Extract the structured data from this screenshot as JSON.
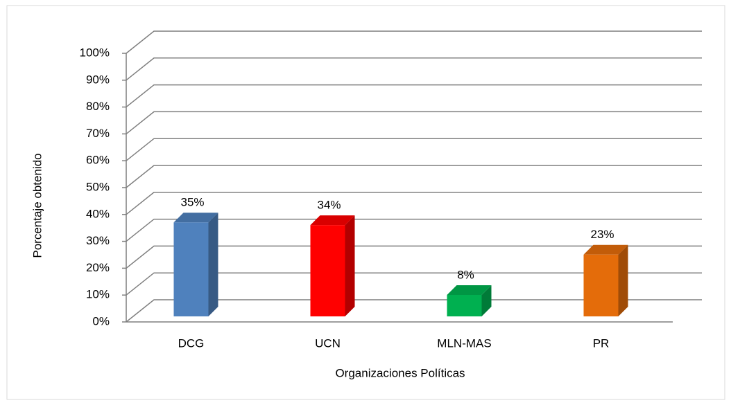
{
  "chart_data": {
    "type": "bar3d",
    "x_label": "Organizaciones Políticas",
    "y_label": "Porcentaje obtenido",
    "categories": [
      "DCG",
      "UCN",
      "MLN-MAS",
      "PR"
    ],
    "values": [
      35,
      34,
      8,
      23
    ],
    "value_labels": [
      "35%",
      "34%",
      "8%",
      "23%"
    ],
    "colors": [
      "#4f81bd",
      "#ff0000",
      "#00b050",
      "#e46c0a"
    ],
    "ylim": [
      0,
      100
    ],
    "yticks": [
      {
        "value": 0,
        "label": "0%"
      },
      {
        "value": 10,
        "label": "10%"
      },
      {
        "value": 20,
        "label": "20%"
      },
      {
        "value": 30,
        "label": "30%"
      },
      {
        "value": 40,
        "label": "40%"
      },
      {
        "value": 50,
        "label": "50%"
      },
      {
        "value": 60,
        "label": "60%"
      },
      {
        "value": 70,
        "label": "70%"
      },
      {
        "value": 80,
        "label": "80%"
      },
      {
        "value": 90,
        "label": "90%"
      },
      {
        "value": 100,
        "label": "100%"
      }
    ],
    "grid": true
  }
}
